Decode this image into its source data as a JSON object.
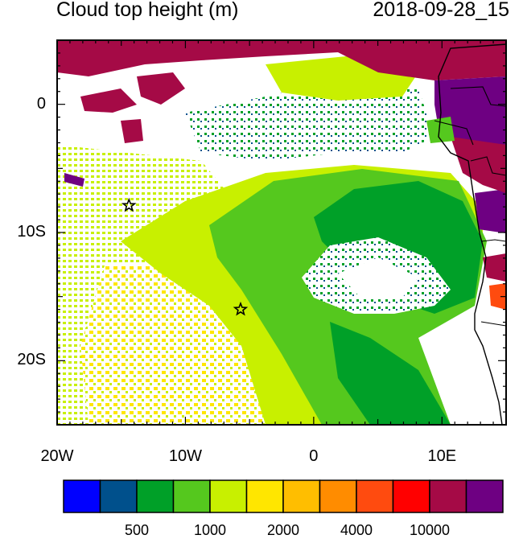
{
  "title_left": "Cloud top height (m)",
  "title_right": "2018-09-28_15",
  "map": {
    "lon_range": [
      -20,
      15
    ],
    "lat_range": [
      -25,
      5
    ],
    "lon_ticks": [
      {
        "value": -20,
        "label": "20W"
      },
      {
        "value": -10,
        "label": "10W"
      },
      {
        "value": 0,
        "label": "0"
      },
      {
        "value": 10,
        "label": "10E"
      }
    ],
    "lat_ticks": [
      {
        "value": 0,
        "label": "0"
      },
      {
        "value": -10,
        "label": "10S"
      },
      {
        "value": -20,
        "label": "20S"
      }
    ],
    "star_markers": [
      {
        "lon": -14.4,
        "lat": -7.9
      },
      {
        "lon": -5.7,
        "lat": -16.0
      }
    ]
  },
  "colorbar": {
    "colors": [
      "#0000ff",
      "#00508c",
      "#00a028",
      "#55c81e",
      "#c8f000",
      "#ffe600",
      "#ffbe00",
      "#ff8c00",
      "#ff4b0f",
      "#ff0000",
      "#a50a46",
      "#6e0082"
    ],
    "labels": [
      "500",
      "1000",
      "2000",
      "4000",
      "10000"
    ]
  }
}
